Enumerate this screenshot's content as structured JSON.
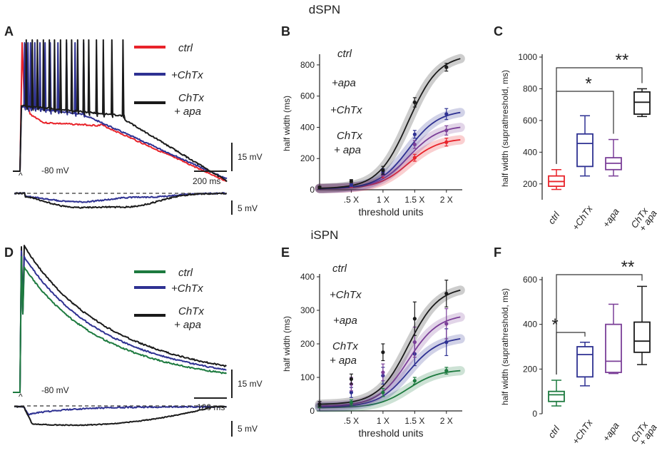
{
  "colors": {
    "ctrl_d": "#e8232a",
    "ctrl_i": "#1d7a3f",
    "chtx": "#2e3192",
    "apa": "#7b3f98",
    "both": "#1a1a1a",
    "dashed": "#333333"
  },
  "top_title": "dSPN",
  "mid_title": "iSPN",
  "panels": {
    "A": {
      "letter": "A",
      "legend": {
        "l1": "ctrl",
        "l2": "+ChTx",
        "l3a": "ChTx",
        "l3b": "+ apa"
      },
      "vrest": "-80 mV",
      "scale_v": "15 mV",
      "scale_t": "200 ms",
      "scale_small": "5 mV",
      "stim": "^"
    },
    "D": {
      "letter": "D",
      "legend": {
        "l1": "ctrl",
        "l2": "+ChTx",
        "l3a": "ChTx",
        "l3b": "+ apa"
      },
      "vrest": "-80 mV",
      "scale_v": "15 mV",
      "scale_t": "100 ms",
      "scale_small": "5 mV",
      "stim": "^"
    },
    "B": {
      "letter": "B"
    },
    "C": {
      "letter": "C",
      "sig1": "*",
      "sig2": "**"
    },
    "E": {
      "letter": "E"
    },
    "F": {
      "letter": "F",
      "sig1": "*",
      "sig2": "**"
    }
  },
  "chart_data": [
    {
      "panel": "B",
      "type": "line",
      "title": "",
      "xlabel": "threshold units",
      "ylabel": "half width (ms)",
      "xlim": [
        0.5,
        2.75
      ],
      "ylim": [
        0,
        850
      ],
      "xticks": [
        {
          "v": 1.0,
          "l": ".5 X"
        },
        {
          "v": 1.5,
          "l": "1 X"
        },
        {
          "v": 2.0,
          "l": "1.5 X"
        },
        {
          "v": 2.5,
          "l": "2 X"
        }
      ],
      "yticks": [
        0,
        200,
        400,
        600,
        800
      ],
      "x": [
        0.5,
        1.0,
        1.5,
        2.0,
        2.5
      ],
      "series": [
        {
          "name": "ctrl",
          "label": "ctrl",
          "color": "#e8232a",
          "values": [
            12,
            25,
            95,
            205,
            305
          ],
          "errors": [
            6,
            8,
            18,
            22,
            25
          ],
          "fit": [
            8,
            40,
            160,
            320
          ]
        },
        {
          "name": "+apa",
          "label": "+apa",
          "color": "#7b3f98",
          "values": [
            12,
            28,
            105,
            290,
            380
          ],
          "errors": [
            6,
            8,
            18,
            25,
            30
          ],
          "fit": [
            8,
            40,
            180,
            400
          ]
        },
        {
          "name": "+ChTx",
          "label": "+ChTx",
          "color": "#2e3192",
          "values": [
            12,
            30,
            115,
            355,
            485
          ],
          "errors": [
            6,
            8,
            20,
            25,
            35
          ],
          "fit": [
            8,
            40,
            210,
            495
          ]
        },
        {
          "name": "ChTx + apa",
          "label_a": "ChTx",
          "label_b": "+ apa",
          "color": "#1a1a1a",
          "values": [
            15,
            55,
            125,
            560,
            785
          ],
          "errors": [
            8,
            10,
            25,
            30,
            25
          ],
          "fit": [
            10,
            45,
            260,
            840
          ]
        }
      ]
    },
    {
      "panel": "C",
      "type": "box",
      "ylabel": "half width (suprathreshold, ms)",
      "ylim": [
        100,
        1000
      ],
      "yticks": [
        200,
        400,
        600,
        800,
        1000
      ],
      "categories": [
        "ctrl",
        "+ChTx",
        "+apa",
        "ChTx\n+ apa"
      ],
      "cat_lines": [
        [
          "ctrl"
        ],
        [
          "+ChTx"
        ],
        [
          "+apa"
        ],
        [
          "ChTx",
          "+ apa"
        ]
      ],
      "colors": [
        "#e8232a",
        "#2e3192",
        "#7b3f98",
        "#1a1a1a"
      ],
      "boxes": [
        {
          "min": 165,
          "q1": 185,
          "median": 215,
          "q3": 250,
          "max": 290
        },
        {
          "min": 250,
          "q1": 310,
          "median": 455,
          "q3": 515,
          "max": 630
        },
        {
          "min": 250,
          "q1": 290,
          "median": 330,
          "q3": 365,
          "max": 480
        },
        {
          "min": 625,
          "q1": 640,
          "median": 715,
          "q3": 780,
          "max": 800
        }
      ],
      "brackets": [
        {
          "from": 0,
          "to": 2,
          "label": "*"
        },
        {
          "from": 0,
          "to": 3,
          "label": "**"
        }
      ]
    },
    {
      "panel": "E",
      "type": "line",
      "title": "",
      "xlabel": "threshold units",
      "ylabel": "half width (ms)",
      "xlim": [
        0.5,
        2.75
      ],
      "ylim": [
        0,
        400
      ],
      "xticks": [
        {
          "v": 1.0,
          "l": ".5 X"
        },
        {
          "v": 1.5,
          "l": "1 X"
        },
        {
          "v": 2.0,
          "l": "1.5 X"
        },
        {
          "v": 2.5,
          "l": "2 X"
        }
      ],
      "yticks": [
        0,
        100,
        200,
        300,
        400
      ],
      "x": [
        0.5,
        1.0,
        1.5,
        2.0,
        2.5
      ],
      "series": [
        {
          "name": "ctrl",
          "label": "ctrl",
          "color": "#1d7a3f",
          "values": [
            15,
            25,
            55,
            90,
            120
          ],
          "errors": [
            5,
            8,
            12,
            10,
            10
          ],
          "fit": [
            10,
            30,
            75,
            120
          ]
        },
        {
          "name": "+ChTx",
          "label": "+ChTx",
          "color": "#2e3192",
          "values": [
            20,
            55,
            105,
            170,
            205
          ],
          "errors": [
            8,
            15,
            25,
            35,
            40
          ],
          "fit": [
            12,
            50,
            140,
            215
          ]
        },
        {
          "name": "+apa",
          "label": "+apa",
          "color": "#7b3f98",
          "values": [
            20,
            80,
            115,
            205,
            260
          ],
          "errors": [
            8,
            20,
            25,
            45,
            45
          ],
          "fit": [
            15,
            60,
            170,
            280
          ]
        },
        {
          "name": "ChTx + apa",
          "label_a": "ChTx",
          "label_b": "+ apa",
          "color": "#1a1a1a",
          "values": [
            20,
            95,
            175,
            275,
            350
          ],
          "errors": [
            8,
            15,
            25,
            50,
            40
          ],
          "fit": [
            20,
            70,
            220,
            360
          ]
        }
      ]
    },
    {
      "panel": "F",
      "type": "box",
      "ylabel": "half width (suprathreshold, ms)",
      "ylim": [
        0,
        600
      ],
      "yticks": [
        0,
        200,
        400,
        600
      ],
      "categories": [
        "ctrl",
        "+ChTx",
        "+apa",
        "ChTx\n+ apa"
      ],
      "cat_lines": [
        [
          "ctrl"
        ],
        [
          "+ChTx"
        ],
        [
          "+apa"
        ],
        [
          "ChTx",
          "+ apa"
        ]
      ],
      "colors": [
        "#1d7a3f",
        "#2e3192",
        "#7b3f98",
        "#1a1a1a"
      ],
      "boxes": [
        {
          "min": 35,
          "q1": 55,
          "median": 85,
          "q3": 100,
          "max": 150
        },
        {
          "min": 125,
          "q1": 165,
          "median": 265,
          "q3": 300,
          "max": 320
        },
        {
          "min": 180,
          "q1": 185,
          "median": 235,
          "q3": 400,
          "max": 490
        },
        {
          "min": 220,
          "q1": 275,
          "median": 325,
          "q3": 410,
          "max": 570
        }
      ],
      "brackets": [
        {
          "from": 0,
          "to": 1,
          "label": "*"
        },
        {
          "from": 0,
          "to": 3,
          "label": "**"
        }
      ]
    }
  ]
}
